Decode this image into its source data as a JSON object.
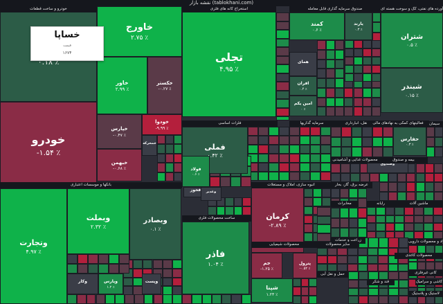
{
  "header": {
    "title": "نقشه بازار (tablokhani.com)"
  },
  "colors": {
    "up_strong": "#0fb24a",
    "up_mid": "#1d8c4a",
    "up_weak": "#2c5c47",
    "down_weak": "#5a3a48",
    "down_mid": "#8a2c46",
    "down_strong": "#b41f3c",
    "neutral": "#3a3d47"
  },
  "sections": [
    {
      "name": "خودرو و ساخت قطعات"
    },
    {
      "name": "استخراج کانه های فلزی"
    },
    {
      "name": "صندوق سرمایه گذاری قابل معامله"
    },
    {
      "name": "فرآورده های نفتی، کک و سوخت هسته ای"
    },
    {
      "name": "فلزات اساسی"
    },
    {
      "name": "محصولات شیمیایی"
    },
    {
      "name": "بانکها و موسسات اعتباری"
    },
    {
      "name": "ساخت محصولات فلزی"
    },
    {
      "name": "انبوه سازی، املاک و مستغلات"
    },
    {
      "name": "سرمایه گذاریها"
    },
    {
      "name": "حمل و نقل، انبارداری"
    },
    {
      "name": "محصولات غذایی و آشامیدنی"
    },
    {
      "name": "بیمه و صندوق"
    },
    {
      "name": "عرضه برق، گاز، بخار"
    },
    {
      "name": "مخابرات"
    },
    {
      "name": "زراعت و خدمات"
    },
    {
      "name": "قند و شکر"
    },
    {
      "name": "سایر محصولات"
    },
    {
      "name": "محصولات کاغذی"
    },
    {
      "name": "رایانه"
    },
    {
      "name": "ماشین آلات"
    },
    {
      "name": "حمل و نقل آبی"
    },
    {
      "name": "سیمان، آهک و گچ"
    },
    {
      "name": "کاشی و سرامیک"
    },
    {
      "name": "مواد و محصولات دارویی"
    },
    {
      "name": "لاستیک و پلاستیک"
    },
    {
      "name": "فعالیتهای کمکی به نهادهای مالی"
    },
    {
      "name": "کانی غیرفلزی"
    }
  ],
  "tooltip": {
    "name": "خساپا",
    "label": "قیمت",
    "value": "۱۶۷۴"
  },
  "chart_data": {
    "type": "heatmap",
    "title": "نقشه بازار (tablokhani.com)",
    "tiles": [
      {
        "name": "خساپا",
        "change": 0.18,
        "change_label": "۰.۱۸ ٪"
      },
      {
        "name": "خودرو",
        "change": -1.54,
        "change_label": "-۱.۵۴ ٪"
      },
      {
        "name": "خاورج",
        "change": 2.75,
        "change_label": "۲.۷۵ ٪"
      },
      {
        "name": "خاور",
        "change": 2.99,
        "change_label": "۲.۹۹ ٪"
      },
      {
        "name": "خکستر",
        "change": -0.27,
        "change_label": "-۰.۲۷ ٪"
      },
      {
        "name": "خودوا",
        "change": -9.99,
        "change_label": "-۹.۹۹ ٪"
      },
      {
        "name": "خپارس",
        "change": -0.47,
        "change_label": "-۰.۴۷ ٪"
      },
      {
        "name": "خبهمن",
        "change": -0.68,
        "change_label": "-۰.۶۸ ٪"
      },
      {
        "name": "خمحرکه",
        "change": null,
        "change_label": ""
      },
      {
        "name": "تجلی",
        "change": 4.95,
        "change_label": "۴.۹۵ ٪"
      },
      {
        "name": "کمند",
        "change": 0.6,
        "change_label": "۰.۶ ٪"
      },
      {
        "name": "یارند",
        "change": 0.3,
        "change_label": "۰.۳ ٪"
      },
      {
        "name": "همای",
        "change": null,
        "change_label": ""
      },
      {
        "name": "افران",
        "change": 0.4,
        "change_label": "۰.۴ ٪"
      },
      {
        "name": "امین یکم",
        "change": 0.0,
        "change_label": "۰ ٪"
      },
      {
        "name": "شتران",
        "change": 0.5,
        "change_label": "۰.۵ ٪"
      },
      {
        "name": "شبندر",
        "change": 0.15,
        "change_label": "۰.۱۵ ٪"
      },
      {
        "name": "فملی",
        "change": 0.42,
        "change_label": "۰.۴۲ ٪"
      },
      {
        "name": "فولاد",
        "change": 0.6,
        "change_label": "۰.۶ ٪"
      },
      {
        "name": "فخوز",
        "change": null,
        "change_label": ""
      },
      {
        "name": "کرمان",
        "change": -2.89,
        "change_label": "-۲.۸۹ ٪"
      },
      {
        "name": "فاذر",
        "change": 1.04,
        "change_label": "۱.۰۴ ٪"
      },
      {
        "name": "وتجارت",
        "change": 4.97,
        "change_label": "۴.۹۷ ٪"
      },
      {
        "name": "وبملت",
        "change": 2.32,
        "change_label": "۲.۳۲ ٪"
      },
      {
        "name": "وبصادر",
        "change": 0.1,
        "change_label": "۰.۱ ٪"
      },
      {
        "name": "وکار",
        "change": null,
        "change_label": ""
      },
      {
        "name": "وپارس",
        "change": 1.2,
        "change_label": "۱.۲ ٪"
      },
      {
        "name": "وپست",
        "change": null,
        "change_label": ""
      },
      {
        "name": "جم",
        "change": -1.25,
        "change_label": "-۱.۲۵ ٪"
      },
      {
        "name": "شپنا",
        "change": 1.23,
        "change_label": "۱.۲۳ ٪"
      },
      {
        "name": "پترول",
        "change": -0.52,
        "change_label": "-۰.۵۲ ٪"
      },
      {
        "name": "حفارس",
        "change": 0.3,
        "change_label": "۰.۳ ٪"
      },
      {
        "name": "وغدیر",
        "change": null,
        "change_label": ""
      },
      {
        "name": "وصندوق",
        "change": null,
        "change_label": ""
      }
    ]
  }
}
